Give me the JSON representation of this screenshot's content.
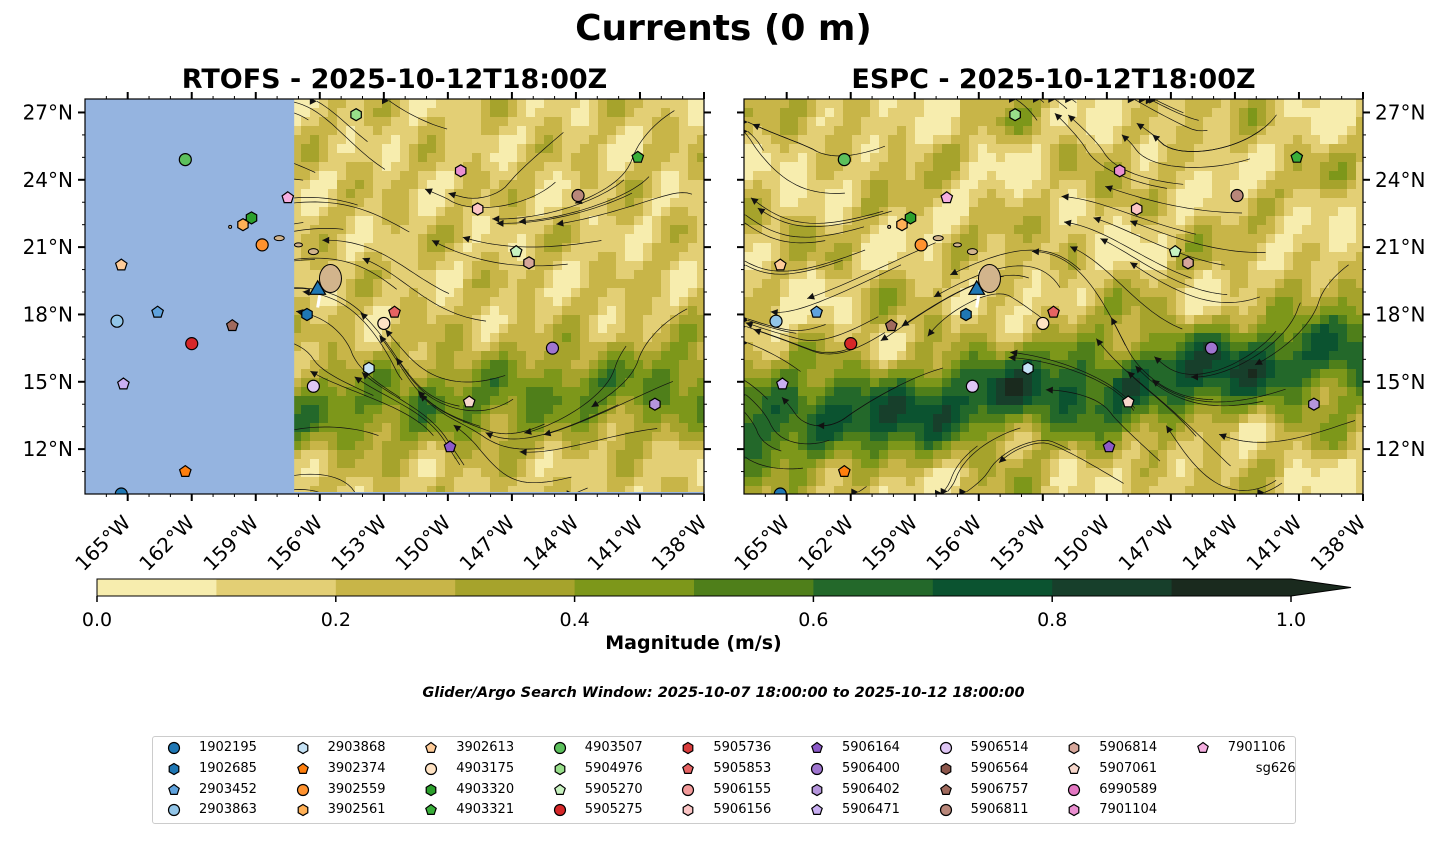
{
  "title": "Currents (0 m)",
  "panels": [
    {
      "title": "RTOFS - 2025-10-12T18:00Z",
      "left_mask": true
    },
    {
      "title": "ESPC - 2025-10-12T18:00Z",
      "left_mask": false
    }
  ],
  "map": {
    "lon_range": [
      -167,
      -138
    ],
    "lat_range": [
      10,
      27.6
    ],
    "lon_ticks": [
      "165°W",
      "162°W",
      "159°W",
      "156°W",
      "153°W",
      "150°W",
      "147°W",
      "144°W",
      "141°W",
      "138°W"
    ],
    "lon_tick_values": [
      -165,
      -162,
      -159,
      -156,
      -153,
      -150,
      -147,
      -144,
      -141,
      -138
    ],
    "lat_ticks": [
      "27°N",
      "24°N",
      "21°N",
      "18°N",
      "15°N",
      "12°N"
    ],
    "lat_tick_values": [
      27,
      24,
      21,
      18,
      15,
      12
    ],
    "ocean_mask_color": "#95b4e0",
    "land_color": "#d2b48c"
  },
  "colorbar": {
    "label": "Magnitude (m/s)",
    "ticks": [
      "0.0",
      "0.2",
      "0.4",
      "0.6",
      "0.8",
      "1.0"
    ],
    "colors": [
      "#f7edae",
      "#e3cf75",
      "#c8b548",
      "#a6a32c",
      "#7d971a",
      "#4f7f1a",
      "#23682a",
      "#0b5330",
      "#173f2b",
      "#1a2a1e"
    ]
  },
  "search_window": "Glider/Argo Search Window: 2025-10-07 18:00:00 to 2025-10-12 18:00:00",
  "legend": [
    {
      "label": "1902195",
      "color": "#1f77b4",
      "shape": "circle"
    },
    {
      "label": "1902685",
      "color": "#1f77b4",
      "shape": "hexagon"
    },
    {
      "label": "2903452",
      "color": "#5fa2dd",
      "shape": "pentagon"
    },
    {
      "label": "2903863",
      "color": "#92c5e8",
      "shape": "circle"
    },
    {
      "label": "2903868",
      "color": "#c5e2f5",
      "shape": "hexagon"
    },
    {
      "label": "3902374",
      "color": "#ff7f0e",
      "shape": "pentagon"
    },
    {
      "label": "3902559",
      "color": "#ff922e",
      "shape": "circle"
    },
    {
      "label": "3902561",
      "color": "#ffb056",
      "shape": "hexagon"
    },
    {
      "label": "3902613",
      "color": "#ffcc99",
      "shape": "pentagon"
    },
    {
      "label": "4903175",
      "color": "#ffe3c4",
      "shape": "circle"
    },
    {
      "label": "4903320",
      "color": "#2ca02c",
      "shape": "hexagon"
    },
    {
      "label": "4903321",
      "color": "#3aaf3a",
      "shape": "pentagon"
    },
    {
      "label": "4903507",
      "color": "#5cc05c",
      "shape": "circle"
    },
    {
      "label": "5904976",
      "color": "#98df8a",
      "shape": "hexagon"
    },
    {
      "label": "5905270",
      "color": "#c8f2c0",
      "shape": "pentagon"
    },
    {
      "label": "5905275",
      "color": "#d62728",
      "shape": "circle"
    },
    {
      "label": "5905736",
      "color": "#d93c3c",
      "shape": "hexagon"
    },
    {
      "label": "5905853",
      "color": "#e66363",
      "shape": "pentagon"
    },
    {
      "label": "5906155",
      "color": "#f29a9a",
      "shape": "circle"
    },
    {
      "label": "5906156",
      "color": "#fbc5c5",
      "shape": "hexagon"
    },
    {
      "label": "5906164",
      "color": "#8c5ac8",
      "shape": "pentagon"
    },
    {
      "label": "5906400",
      "color": "#9f75cf",
      "shape": "circle"
    },
    {
      "label": "5906402",
      "color": "#b595dc",
      "shape": "hexagon"
    },
    {
      "label": "5906471",
      "color": "#c9aff2",
      "shape": "pentagon"
    },
    {
      "label": "5906514",
      "color": "#dfc6f5",
      "shape": "circle"
    },
    {
      "label": "5906564",
      "color": "#8c564b",
      "shape": "hexagon"
    },
    {
      "label": "5906757",
      "color": "#a06a5d",
      "shape": "pentagon"
    },
    {
      "label": "5906811",
      "color": "#b9877a",
      "shape": "circle"
    },
    {
      "label": "5906814",
      "color": "#d6a69a",
      "shape": "hexagon"
    },
    {
      "label": "5907061",
      "color": "#f7d7cc",
      "shape": "pentagon"
    },
    {
      "label": "6990589",
      "color": "#e377c2",
      "shape": "circle"
    },
    {
      "label": "7901104",
      "color": "#ea8fd0",
      "shape": "hexagon"
    },
    {
      "label": "7901106",
      "color": "#f5aee0",
      "shape": "pentagon"
    },
    {
      "label": "sg626",
      "color": "#1f77b4",
      "shape": "triangle"
    }
  ],
  "floats": [
    {
      "label": "4903507",
      "lon": -162.3,
      "lat": 24.9
    },
    {
      "label": "5904976",
      "lon": -154.3,
      "lat": 26.9
    },
    {
      "label": "4903321",
      "lon": -141.1,
      "lat": 25.0
    },
    {
      "label": "7901106",
      "lon": -157.5,
      "lat": 23.2
    },
    {
      "label": "4903320",
      "lon": -159.2,
      "lat": 22.3
    },
    {
      "label": "3902561",
      "lon": -159.6,
      "lat": 22.0
    },
    {
      "label": "3902559",
      "lon": -158.7,
      "lat": 21.1
    },
    {
      "label": "7901104",
      "lon": -149.4,
      "lat": 24.4
    },
    {
      "label": "5906156",
      "lon": -148.6,
      "lat": 22.7
    },
    {
      "label": "5906811",
      "lon": -143.9,
      "lat": 23.3
    },
    {
      "label": "5905270",
      "lon": -146.8,
      "lat": 20.8
    },
    {
      "label": "5906814",
      "lon": -146.2,
      "lat": 20.3
    },
    {
      "label": "3902613",
      "lon": -165.3,
      "lat": 20.2
    },
    {
      "label": "2903452",
      "lon": -163.6,
      "lat": 18.1
    },
    {
      "label": "2903863",
      "lon": -165.5,
      "lat": 17.7
    },
    {
      "label": "1902685",
      "lon": -156.6,
      "lat": 18.0
    },
    {
      "label": "5906757",
      "lon": -160.1,
      "lat": 17.5
    },
    {
      "label": "5905275",
      "lon": -162.0,
      "lat": 16.7
    },
    {
      "label": "4903175",
      "lon": -153.0,
      "lat": 17.6
    },
    {
      "label": "5905853",
      "lon": -152.5,
      "lat": 18.1
    },
    {
      "label": "5906400",
      "lon": -145.1,
      "lat": 16.5
    },
    {
      "label": "2903868",
      "lon": -153.7,
      "lat": 15.6
    },
    {
      "label": "5906471",
      "lon": -165.2,
      "lat": 14.9
    },
    {
      "label": "5906514",
      "lon": -156.3,
      "lat": 14.8
    },
    {
      "label": "3902374",
      "lon": -162.3,
      "lat": 11.0
    },
    {
      "label": "5906164",
      "lon": -149.9,
      "lat": 12.1
    },
    {
      "label": "5907061",
      "lon": -149.0,
      "lat": 14.1
    },
    {
      "label": "5906402",
      "lon": -140.3,
      "lat": 14.0
    },
    {
      "label": "1902195",
      "lon": -165.3,
      "lat": 10.0
    }
  ],
  "glider": {
    "label": "sg626",
    "lon": -156.1,
    "lat": 19.2
  }
}
